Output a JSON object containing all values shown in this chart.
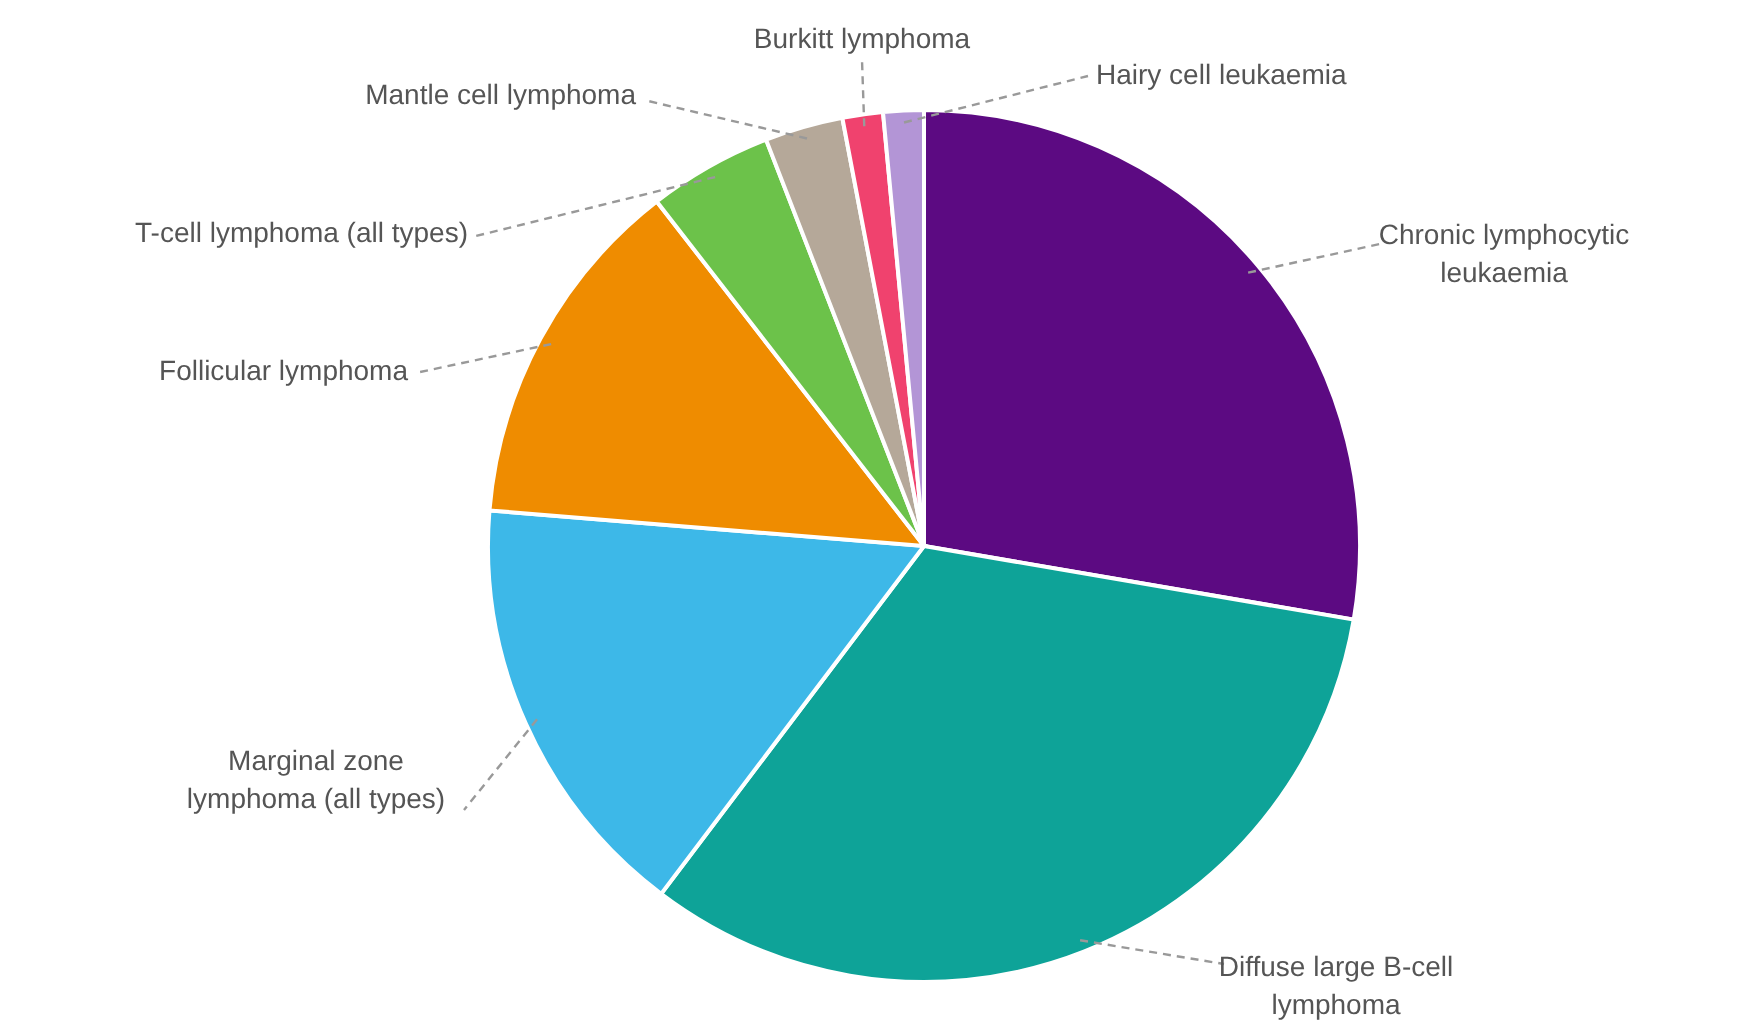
{
  "chart_data": {
    "type": "pie",
    "categories": [
      "Chronic lymphocytic leukaemia",
      "Diffuse large B-cell lymphoma",
      "Marginal zone lymphoma (all types)",
      "Follicular lymphoma",
      "T-cell lymphoma (all types)",
      "Mantle cell lymphoma",
      "Burkitt lymphoma",
      "Hairy cell leukaemia"
    ],
    "values": [
      27.7,
      32.6,
      16.0,
      13.2,
      4.6,
      2.9,
      1.5,
      1.5
    ],
    "colors": [
      "#5c0a82",
      "#0ea398",
      "#3db8e8",
      "#ef8c00",
      "#6cc24a",
      "#b5a899",
      "#f0426e",
      "#b395d6"
    ]
  }
}
